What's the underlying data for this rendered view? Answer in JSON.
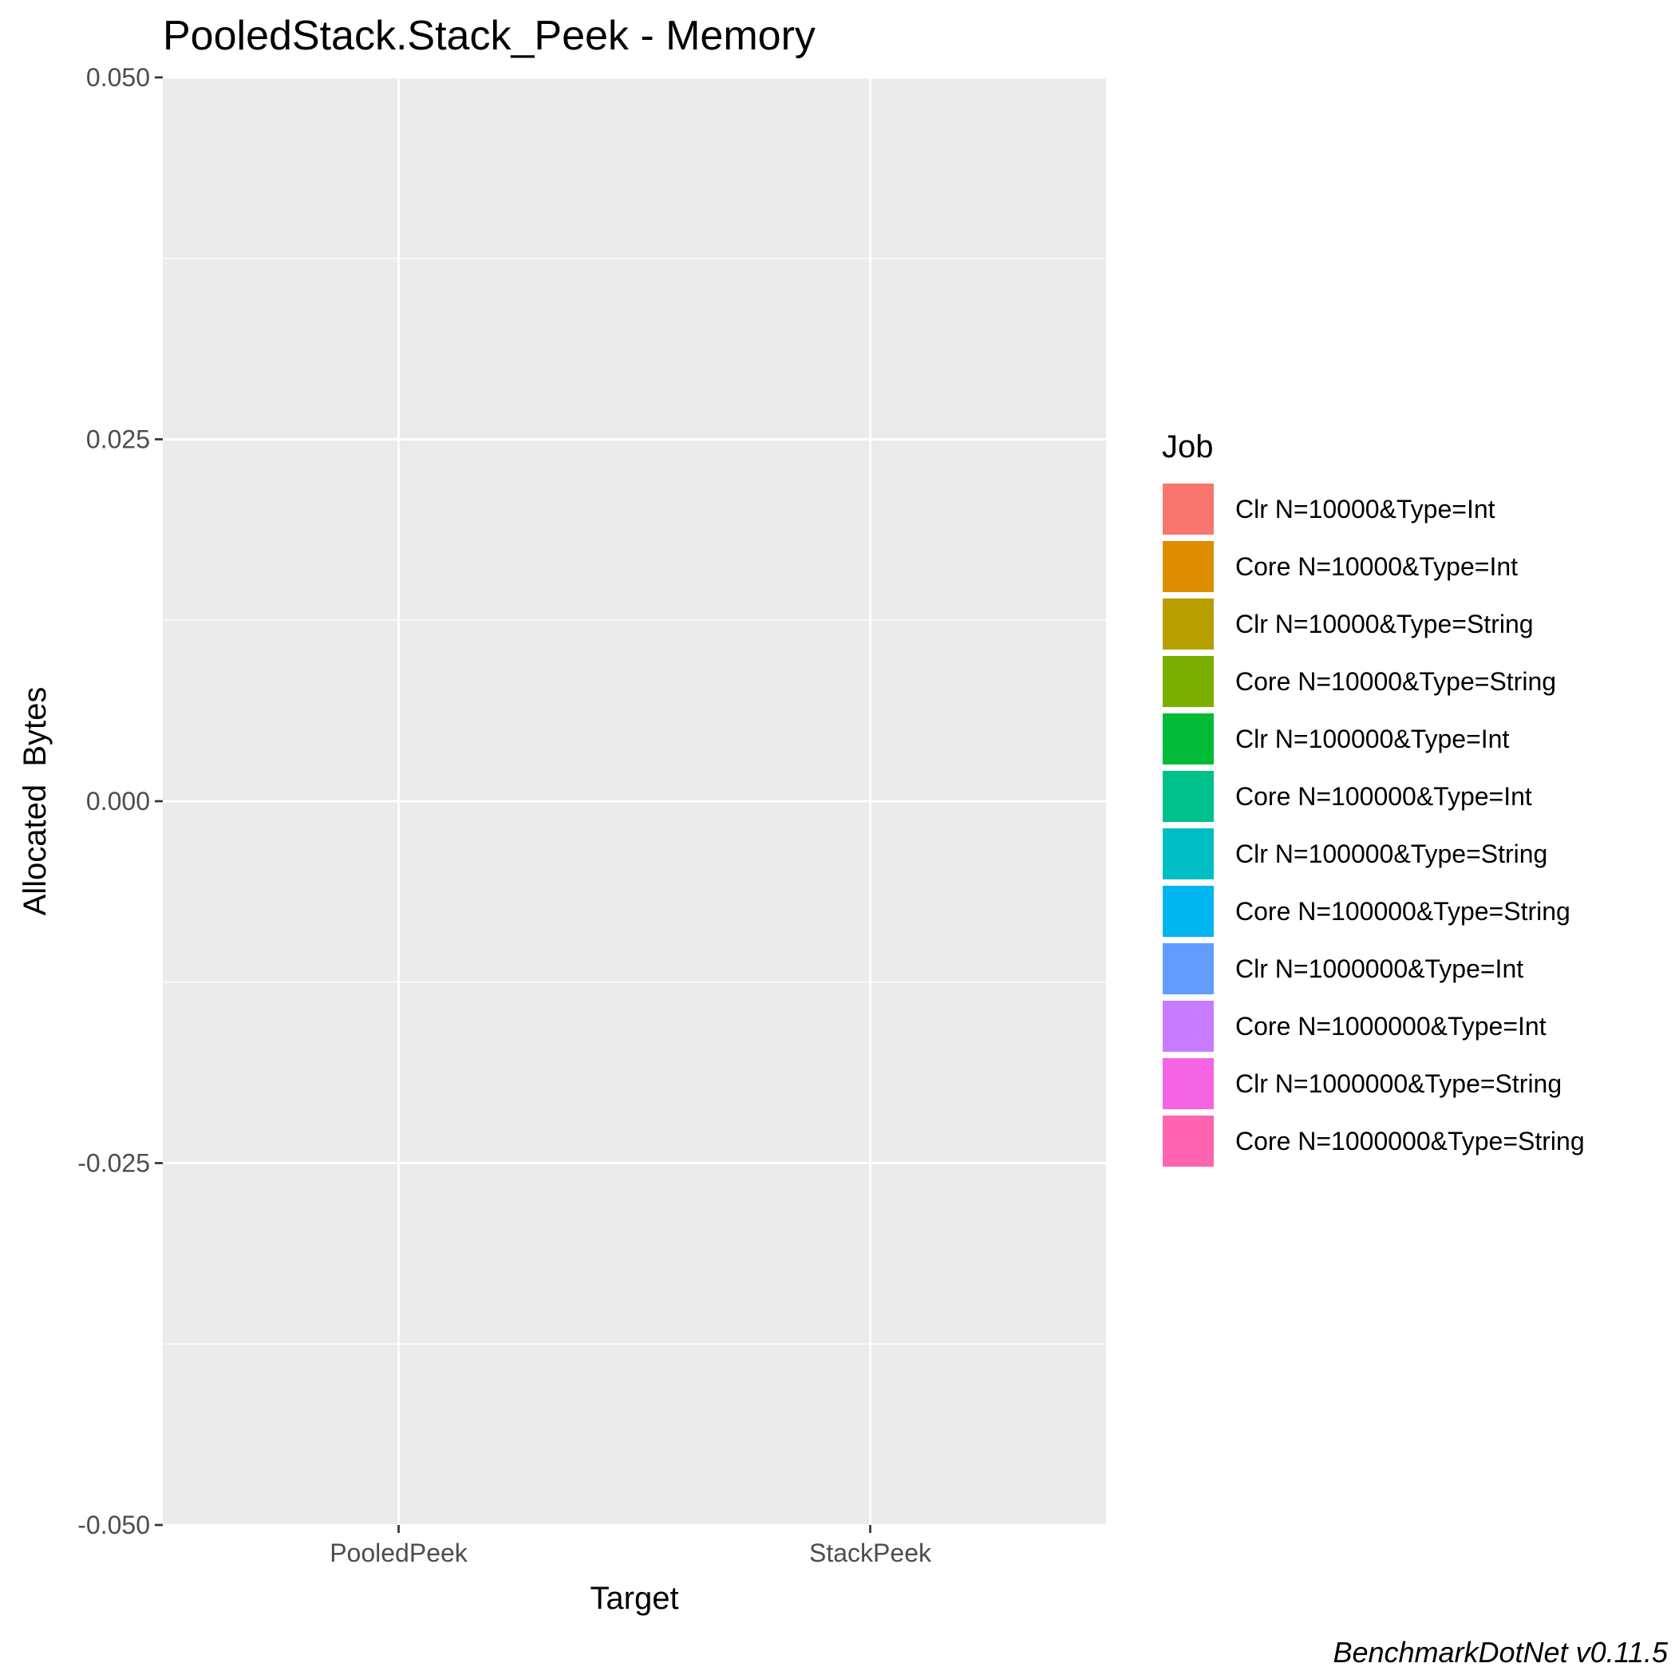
{
  "chart_data": {
    "type": "bar",
    "title": "PooledStack.Stack_Peek - Memory",
    "xlabel": "Target",
    "ylabel": "Allocated  Bytes",
    "categories": [
      "PooledPeek",
      "StackPeek"
    ],
    "ylim": [
      -0.05,
      0.05
    ],
    "yticks": [
      0.05,
      0.025,
      0.0,
      -0.025,
      -0.05
    ],
    "ytick_labels": [
      "0.050",
      "0.025",
      "0.000",
      "-0.025",
      "-0.050"
    ],
    "grid": true,
    "legend_title": "Job",
    "legend_position": "right",
    "series": [
      {
        "name": "Clr N=10000&Type=Int",
        "color": "#F8766D",
        "values": [
          0,
          0
        ]
      },
      {
        "name": "Core N=10000&Type=Int",
        "color": "#DE8C00",
        "values": [
          0,
          0
        ]
      },
      {
        "name": "Clr N=10000&Type=String",
        "color": "#B79F00",
        "values": [
          0,
          0
        ]
      },
      {
        "name": "Core N=10000&Type=String",
        "color": "#7CAE00",
        "values": [
          0,
          0
        ]
      },
      {
        "name": "Clr N=100000&Type=Int",
        "color": "#00BA38",
        "values": [
          0,
          0
        ]
      },
      {
        "name": "Core N=100000&Type=Int",
        "color": "#00C08B",
        "values": [
          0,
          0
        ]
      },
      {
        "name": "Clr N=100000&Type=String",
        "color": "#00BFC4",
        "values": [
          0,
          0
        ]
      },
      {
        "name": "Core N=100000&Type=String",
        "color": "#00B4F0",
        "values": [
          0,
          0
        ]
      },
      {
        "name": "Clr N=1000000&Type=Int",
        "color": "#619CFF",
        "values": [
          0,
          0
        ]
      },
      {
        "name": "Core N=1000000&Type=Int",
        "color": "#C77CFF",
        "values": [
          0,
          0
        ]
      },
      {
        "name": "Clr N=1000000&Type=String",
        "color": "#F564E3",
        "values": [
          0,
          0
        ]
      },
      {
        "name": "Core N=1000000&Type=String",
        "color": "#FF64B0",
        "values": [
          0,
          0
        ]
      }
    ],
    "caption": "BenchmarkDotNet v0.11.5"
  }
}
